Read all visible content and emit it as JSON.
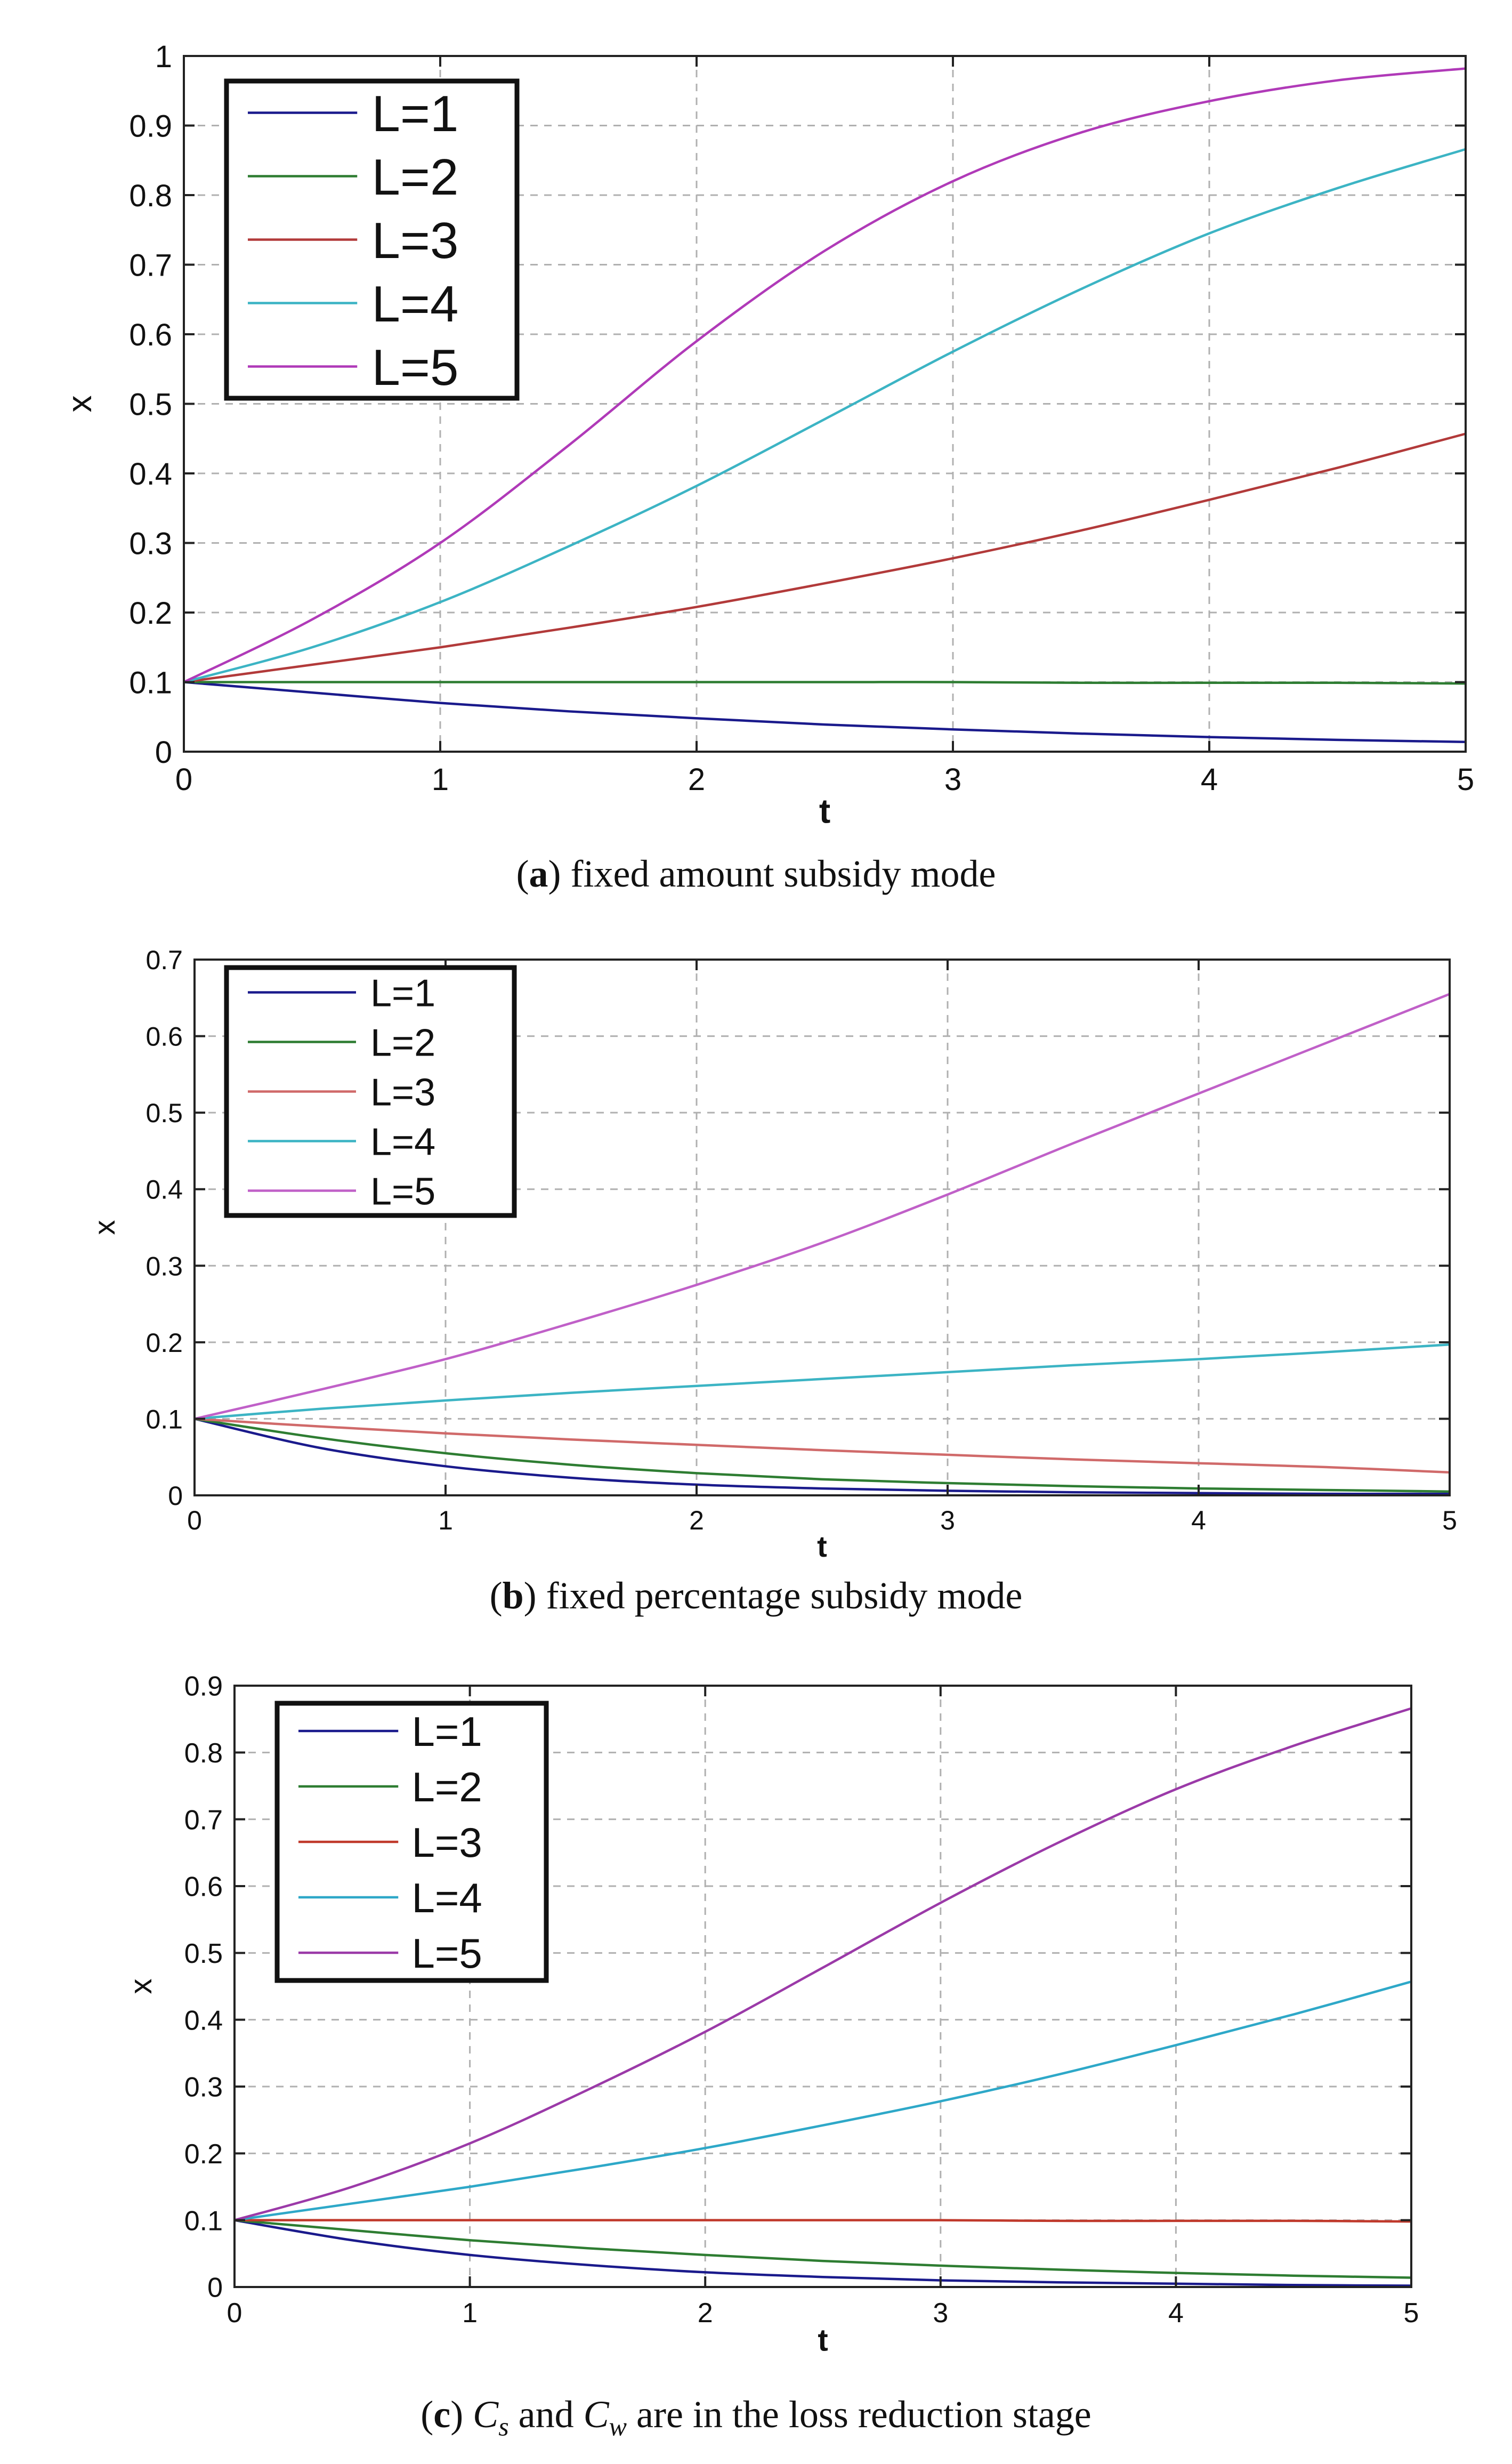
{
  "chart_data": [
    {
      "type": "line",
      "panel": "a",
      "caption_label": "a",
      "caption_text": "fixed amount subsidy mode",
      "xlabel": "t",
      "ylabel": "x",
      "xlim": [
        0,
        5
      ],
      "ylim": [
        0,
        1
      ],
      "xticks": [
        "0",
        "1",
        "2",
        "3",
        "4",
        "5"
      ],
      "yticks": [
        "0",
        "0.1",
        "0.2",
        "0.3",
        "0.4",
        "0.5",
        "0.6",
        "0.7",
        "0.8",
        "0.9",
        "1"
      ],
      "grid": true,
      "legend_position": "top-left",
      "x": [
        0,
        0.5,
        1,
        1.5,
        2,
        2.5,
        3,
        3.5,
        4,
        4.5,
        5
      ],
      "series": [
        {
          "name": "L=1",
          "color": "#1a1a8c",
          "values": [
            0.1,
            0.085,
            0.07,
            0.058,
            0.048,
            0.039,
            0.032,
            0.026,
            0.021,
            0.017,
            0.014
          ]
        },
        {
          "name": "L=2",
          "color": "#2e7d32",
          "values": [
            0.1,
            0.1,
            0.1,
            0.1,
            0.1,
            0.1,
            0.1,
            0.099,
            0.099,
            0.099,
            0.098
          ]
        },
        {
          "name": "L=3",
          "color": "#b23a3a",
          "values": [
            0.1,
            0.125,
            0.15,
            0.178,
            0.208,
            0.242,
            0.278,
            0.318,
            0.362,
            0.408,
            0.457
          ]
        },
        {
          "name": "L=4",
          "color": "#3cb4c4",
          "values": [
            0.1,
            0.15,
            0.215,
            0.295,
            0.382,
            0.478,
            0.575,
            0.665,
            0.745,
            0.81,
            0.866
          ]
        },
        {
          "name": "L=5",
          "color": "#b03ab8",
          "values": [
            0.1,
            0.19,
            0.3,
            0.44,
            0.59,
            0.72,
            0.82,
            0.89,
            0.935,
            0.965,
            0.982
          ]
        }
      ]
    },
    {
      "type": "line",
      "panel": "b",
      "caption_label": "b",
      "caption_text": "fixed percentage subsidy mode",
      "xlabel": "t",
      "ylabel": "x",
      "xlim": [
        0,
        5
      ],
      "ylim": [
        0,
        0.7
      ],
      "xticks": [
        "0",
        "1",
        "2",
        "3",
        "4",
        "5"
      ],
      "yticks": [
        "0",
        "0.1",
        "0.2",
        "0.3",
        "0.4",
        "0.5",
        "0.6",
        "0.7"
      ],
      "grid": true,
      "legend_position": "top-left",
      "x": [
        0,
        0.5,
        1,
        1.5,
        2,
        2.5,
        3,
        3.5,
        4,
        4.5,
        5
      ],
      "series": [
        {
          "name": "L=1",
          "color": "#1a1a8c",
          "values": [
            0.1,
            0.062,
            0.038,
            0.023,
            0.014,
            0.009,
            0.006,
            0.004,
            0.003,
            0.002,
            0.002
          ]
        },
        {
          "name": "L=2",
          "color": "#2e7d32",
          "values": [
            0.1,
            0.075,
            0.055,
            0.04,
            0.029,
            0.021,
            0.016,
            0.012,
            0.009,
            0.007,
            0.005
          ]
        },
        {
          "name": "L=3",
          "color": "#d06a6a",
          "values": [
            0.1,
            0.09,
            0.081,
            0.073,
            0.066,
            0.059,
            0.053,
            0.047,
            0.042,
            0.037,
            0.03
          ]
        },
        {
          "name": "L=4",
          "color": "#3cb4c4",
          "values": [
            0.1,
            0.113,
            0.124,
            0.134,
            0.143,
            0.152,
            0.161,
            0.17,
            0.178,
            0.187,
            0.197
          ]
        },
        {
          "name": "L=5",
          "color": "#c060c8",
          "values": [
            0.1,
            0.138,
            0.178,
            0.225,
            0.275,
            0.33,
            0.393,
            0.46,
            0.525,
            0.59,
            0.655
          ]
        }
      ]
    },
    {
      "type": "line",
      "panel": "c",
      "caption_label": "c",
      "caption_text": "and",
      "caption_tail": "are in the loss reduction stage",
      "caption_sym1": "C",
      "caption_sub1": "s",
      "caption_sym2": "C",
      "caption_sub2": "w",
      "xlabel": "t",
      "ylabel": "x",
      "xlim": [
        0,
        5
      ],
      "ylim": [
        0,
        0.9
      ],
      "xticks": [
        "0",
        "1",
        "2",
        "3",
        "4",
        "5"
      ],
      "yticks": [
        "0",
        "0.1",
        "0.2",
        "0.3",
        "0.4",
        "0.5",
        "0.6",
        "0.7",
        "0.8",
        "0.9"
      ],
      "grid": true,
      "legend_position": "top-left",
      "x": [
        0,
        0.5,
        1,
        1.5,
        2,
        2.5,
        3,
        3.5,
        4,
        4.5,
        5
      ],
      "series": [
        {
          "name": "L=1",
          "color": "#1a1a8c",
          "values": [
            0.1,
            0.07,
            0.048,
            0.033,
            0.022,
            0.015,
            0.01,
            0.007,
            0.005,
            0.003,
            0.002
          ]
        },
        {
          "name": "L=2",
          "color": "#2e7d32",
          "values": [
            0.1,
            0.085,
            0.07,
            0.058,
            0.048,
            0.039,
            0.032,
            0.026,
            0.021,
            0.017,
            0.014
          ]
        },
        {
          "name": "L=3",
          "color": "#c0392b",
          "values": [
            0.1,
            0.1,
            0.1,
            0.1,
            0.1,
            0.1,
            0.1,
            0.099,
            0.099,
            0.099,
            0.098
          ]
        },
        {
          "name": "L=4",
          "color": "#2ea8c8",
          "values": [
            0.1,
            0.125,
            0.15,
            0.178,
            0.208,
            0.242,
            0.278,
            0.318,
            0.362,
            0.408,
            0.457
          ]
        },
        {
          "name": "L=5",
          "color": "#9b3aa8",
          "values": [
            0.1,
            0.15,
            0.215,
            0.295,
            0.382,
            0.478,
            0.575,
            0.665,
            0.745,
            0.81,
            0.866
          ]
        }
      ]
    }
  ]
}
